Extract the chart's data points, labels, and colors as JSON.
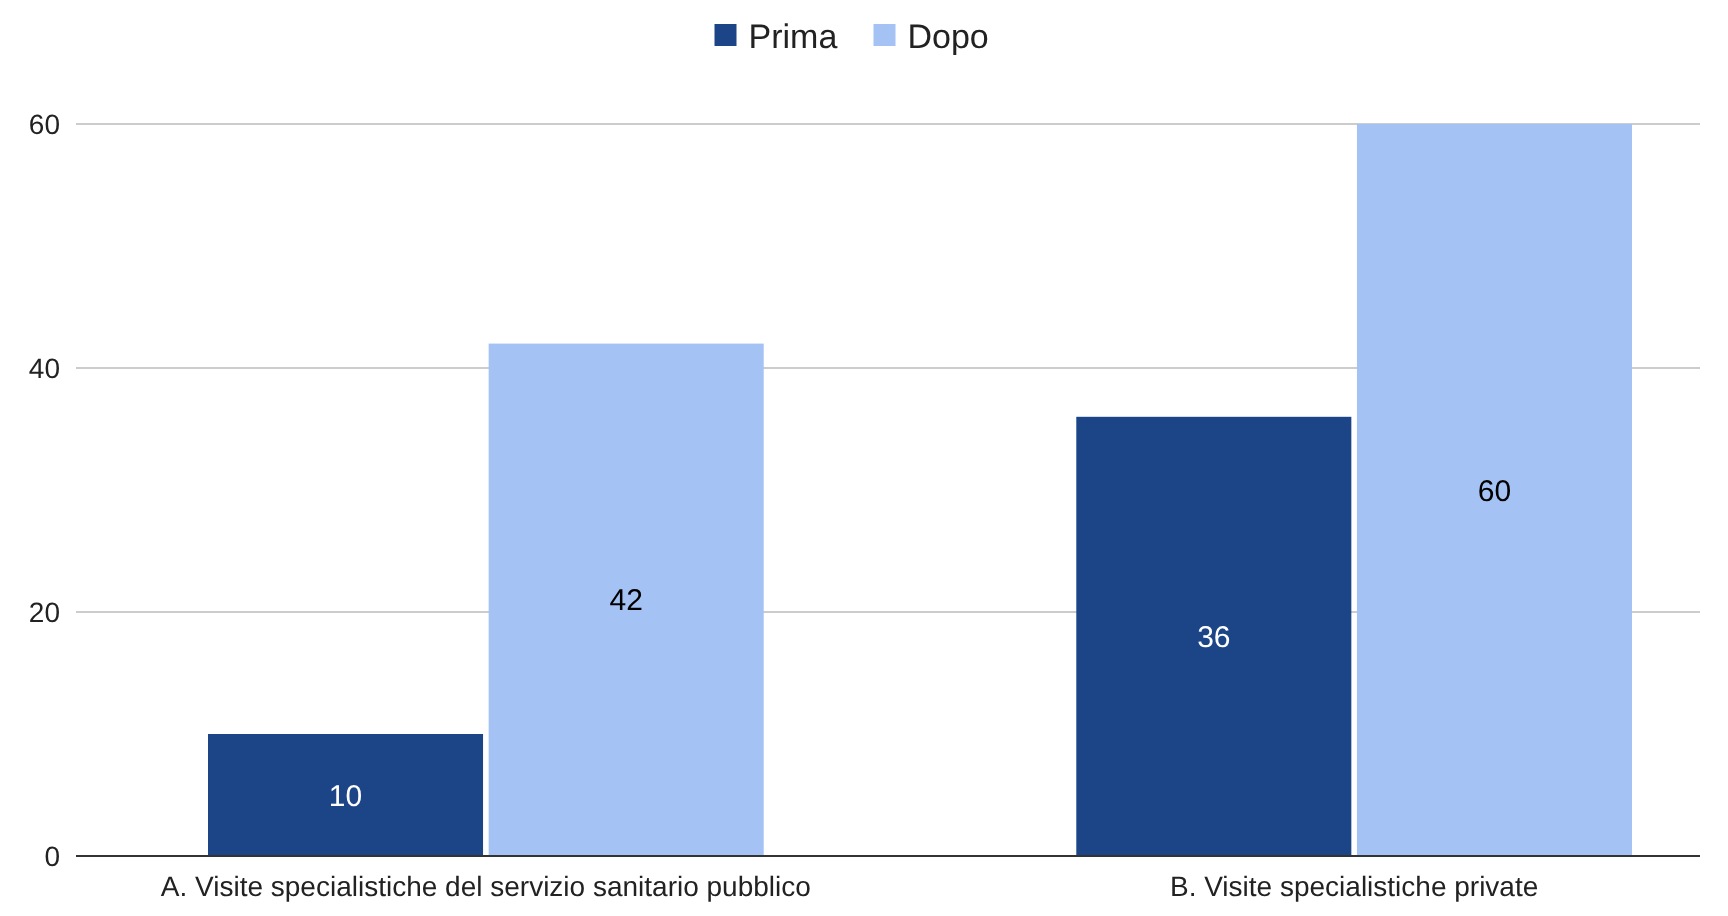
{
  "chart_data": {
    "type": "bar",
    "categories": [
      "A. Visite specialistiche del servizio sanitario pubblico",
      "B. Visite specialistiche private"
    ],
    "series": [
      {
        "name": "Prima",
        "color": "#1c4587",
        "values": [
          10,
          36
        ]
      },
      {
        "name": "Dopo",
        "color": "#a4c2f4",
        "values": [
          42,
          60
        ]
      }
    ],
    "ylim": [
      0,
      60
    ],
    "yticks": [
      0,
      20,
      40,
      60
    ],
    "grid": "y",
    "legend": "top",
    "data_labels": true
  }
}
